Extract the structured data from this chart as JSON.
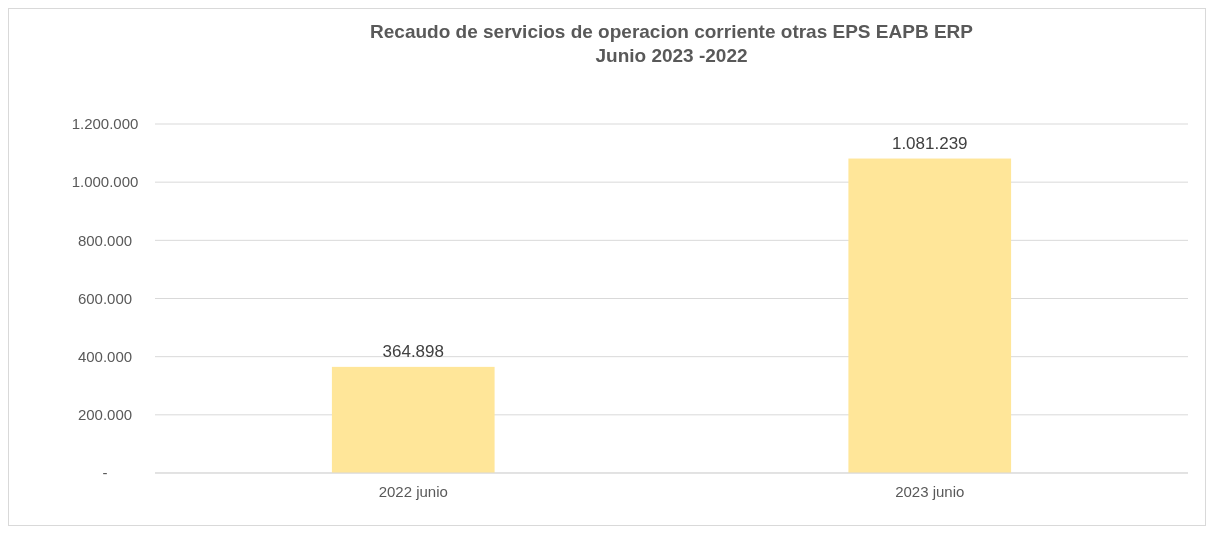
{
  "chart_data": {
    "type": "bar",
    "title": "Recaudo de servicios de operacion corriente otras  EPS EAPB ERP\nJunio 2023 -2022",
    "categories": [
      "2022 junio",
      "2023 junio"
    ],
    "values": [
      364898,
      1081239
    ],
    "value_labels": [
      "364.898",
      "1.081.239"
    ],
    "color": "#ffe699",
    "ylim": [
      0,
      1200000
    ],
    "yticks": [
      {
        "value": 0,
        "label": "-"
      },
      {
        "value": 200000,
        "label": "200.000"
      },
      {
        "value": 400000,
        "label": "400.000"
      },
      {
        "value": 600000,
        "label": "600.000"
      },
      {
        "value": 800000,
        "label": "800.000"
      },
      {
        "value": 1000000,
        "label": "1.000.000"
      },
      {
        "value": 1200000,
        "label": "1.200.000"
      }
    ],
    "grid": "y"
  }
}
